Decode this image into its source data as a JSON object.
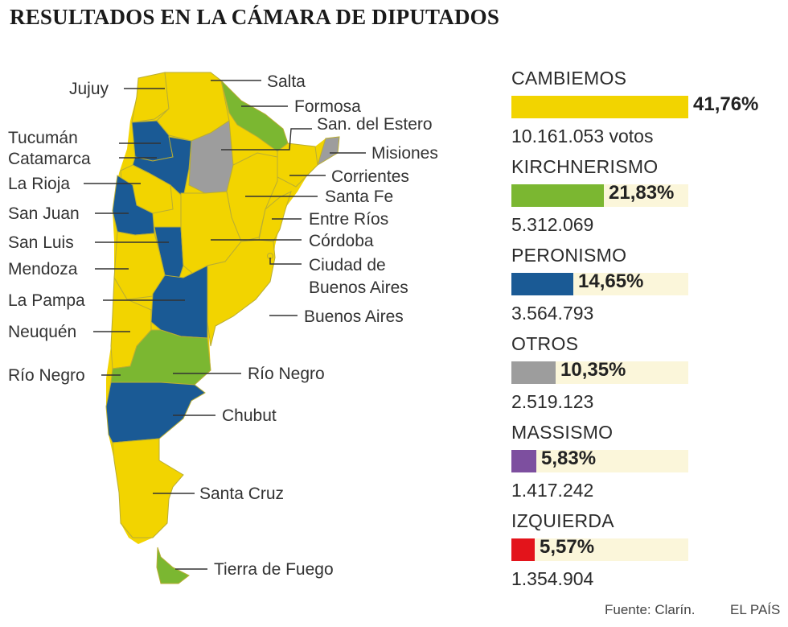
{
  "title": "RESULTADOS EN LA CÁMARA DE DIPUTADOS",
  "colors": {
    "cambiemos": "#f2d400",
    "kirchnerismo": "#7bb731",
    "peronismo": "#1a5a95",
    "otros": "#9d9d9d",
    "massismo": "#7d4f9f",
    "izquierda": "#e3141b",
    "track": "#fbf6da"
  },
  "chart_data": {
    "type": "bar",
    "title": "RESULTADOS EN LA CÁMARA DE DIPUTADOS",
    "unit": "%",
    "xlim": [
      0,
      41.76
    ],
    "categories": [
      "CAMBIEMOS",
      "KIRCHNERISMO",
      "PERONISMO",
      "OTROS",
      "MASSISMO",
      "IZQUIERDA"
    ],
    "values": [
      41.76,
      21.83,
      14.65,
      10.35,
      5.83,
      5.57
    ],
    "series": [
      {
        "name": "CAMBIEMOS",
        "value": 41.76,
        "label": "41,76%",
        "votes": "10.161.053 votos",
        "color": "#f2d400"
      },
      {
        "name": "KIRCHNERISMO",
        "value": 21.83,
        "label": "21,83%",
        "votes": "5.312.069",
        "color": "#7bb731"
      },
      {
        "name": "PERONISMO",
        "value": 14.65,
        "label": "14,65%",
        "votes": "3.564.793",
        "color": "#1a5a95"
      },
      {
        "name": "OTROS",
        "value": 10.35,
        "label": "10,35%",
        "votes": "2.519.123",
        "color": "#9d9d9d"
      },
      {
        "name": "MASSISMO",
        "value": 5.83,
        "label": "5,83%",
        "votes": "1.417.242",
        "color": "#7d4f9f"
      },
      {
        "name": "IZQUIERDA",
        "value": 5.57,
        "label": "5,57%",
        "votes": "1.354.904",
        "color": "#e3141b"
      }
    ]
  },
  "map": {
    "provinces": [
      {
        "name": "Jujuy",
        "winner": "cambiemos"
      },
      {
        "name": "Salta",
        "winner": "cambiemos"
      },
      {
        "name": "Formosa",
        "winner": "kirchnerismo"
      },
      {
        "name": "Tucumán",
        "winner": "peronismo"
      },
      {
        "name": "Catamarca",
        "winner": "peronismo"
      },
      {
        "name": "San. del Estero",
        "winner": "otros"
      },
      {
        "name": "Misiones",
        "winner": "otros"
      },
      {
        "name": "La Rioja",
        "winner": "cambiemos"
      },
      {
        "name": "Corrientes",
        "winner": "cambiemos"
      },
      {
        "name": "Santa Fe",
        "winner": "cambiemos"
      },
      {
        "name": "San Juan",
        "winner": "peronismo"
      },
      {
        "name": "Entre Ríos",
        "winner": "cambiemos"
      },
      {
        "name": "San Luis",
        "winner": "peronismo"
      },
      {
        "name": "Córdoba",
        "winner": "cambiemos"
      },
      {
        "name": "Mendoza",
        "winner": "cambiemos"
      },
      {
        "name": "Ciudad de Buenos Aires",
        "winner": "cambiemos"
      },
      {
        "name": "La Pampa",
        "winner": "peronismo"
      },
      {
        "name": "Buenos Aires",
        "winner": "cambiemos"
      },
      {
        "name": "Neuquén",
        "winner": "cambiemos"
      },
      {
        "name": "Río Negro",
        "winner": "kirchnerismo"
      },
      {
        "name": "Chubut",
        "winner": "peronismo"
      },
      {
        "name": "Santa Cruz",
        "winner": "cambiemos"
      },
      {
        "name": "Tierra de Fuego",
        "winner": "kirchnerismo"
      }
    ],
    "labels": {
      "jujuy": "Jujuy",
      "salta": "Salta",
      "formosa": "Formosa",
      "tucuman": "Tucumán",
      "catamarca": "Catamarca",
      "sgo_estero": "San. del Estero",
      "misiones": "Misiones",
      "la_rioja": "La Rioja",
      "corrientes": "Corrientes",
      "santa_fe": "Santa Fe",
      "san_juan": "San Juan",
      "entre_rios": "Entre Ríos",
      "san_luis": "San Luis",
      "cordoba": "Córdoba",
      "mendoza": "Mendoza",
      "ciudad_1": "Ciudad de",
      "ciudad_2": "Buenos Aires",
      "la_pampa": "La Pampa",
      "buenos_aires": "Buenos Aires",
      "neuquen": "Neuquén",
      "rio_negro_left": "Río Negro",
      "rio_negro_right": "Río Negro",
      "chubut": "Chubut",
      "santa_cruz": "Santa Cruz",
      "tierra_fuego": "Tierra de Fuego"
    }
  },
  "footer": {
    "source": "Fuente: Clarín.",
    "brand": "EL PAÍS"
  }
}
